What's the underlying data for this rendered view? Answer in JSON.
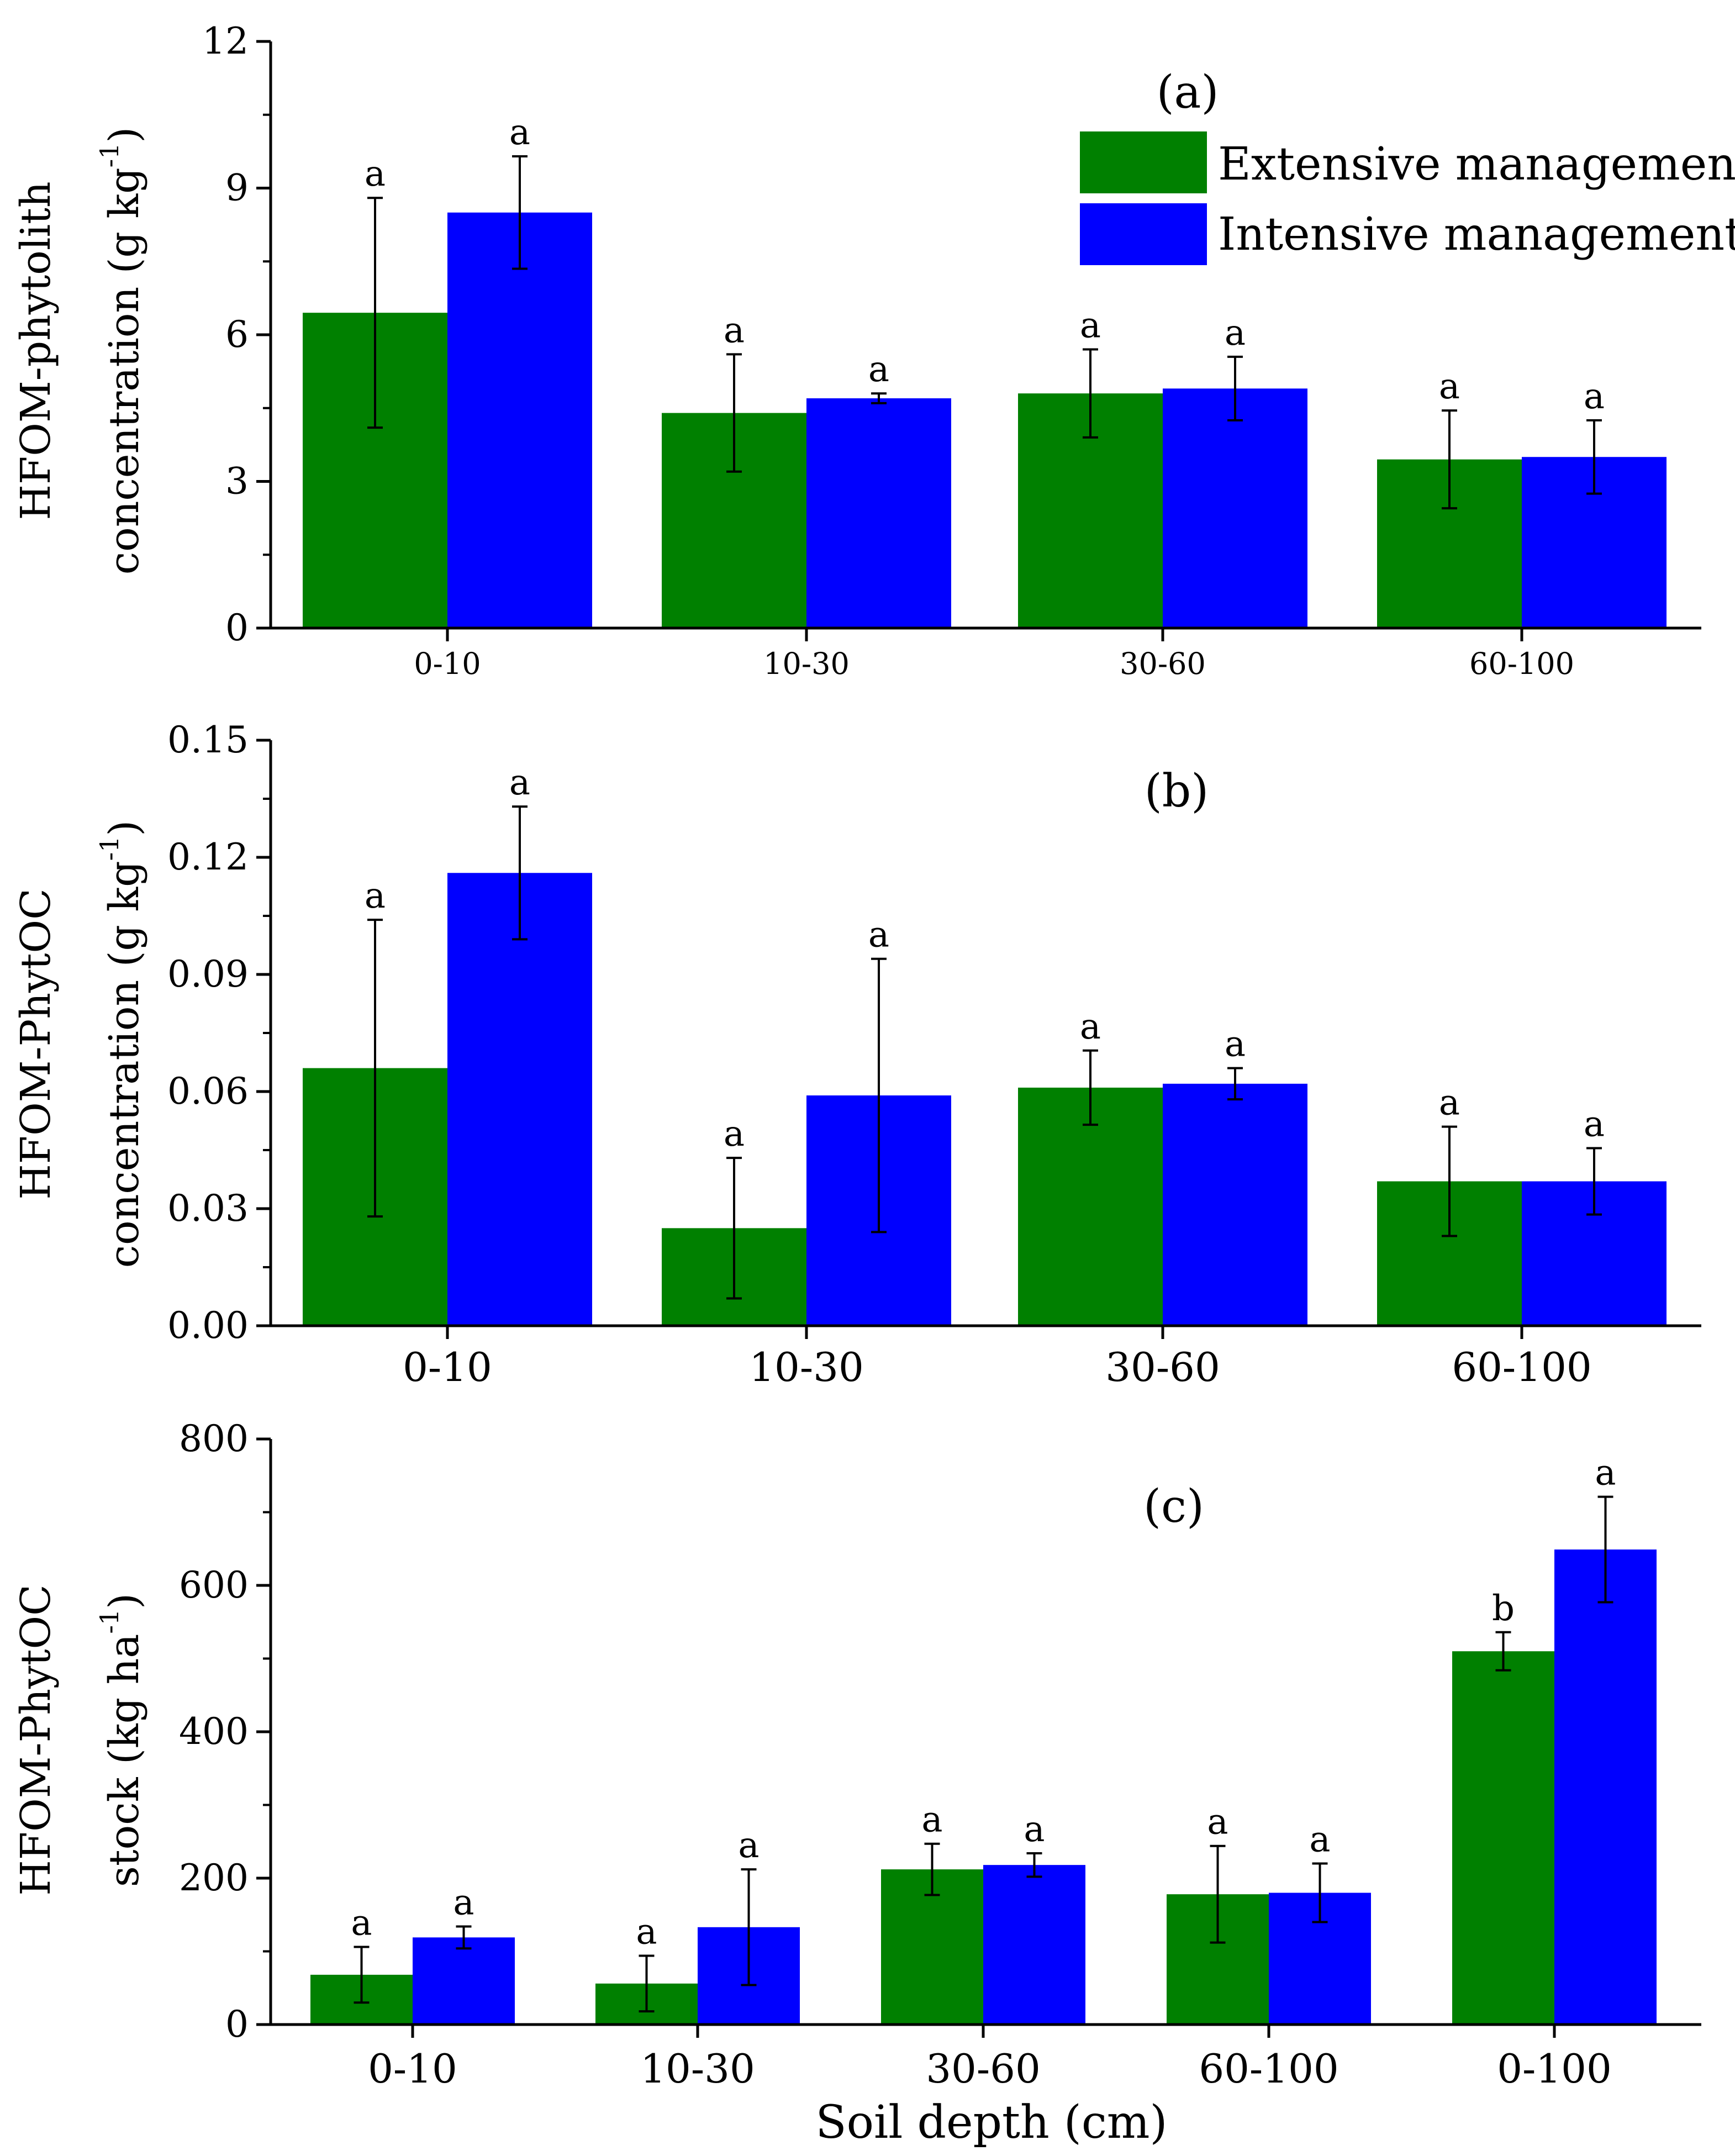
{
  "legend": {
    "extensive_label": "Extensive management",
    "intensive_label": "Intensive management",
    "extensive_color": "#008000",
    "intensive_color": "#0000ff"
  },
  "chart_data": [
    {
      "type": "bar",
      "panel_label": "(a)",
      "ylabel_line1": "HFOM-phytolith",
      "ylabel_line2_pre": "concentration (g kg",
      "ylabel_sup": "-1",
      "ylabel_line2_post": ")",
      "categories": [
        "0-10",
        "10-30",
        "30-60",
        "60-100"
      ],
      "ylim": [
        0,
        12
      ],
      "yticks": [
        "0",
        "3",
        "6",
        "9",
        "12"
      ],
      "ytick_values": [
        0,
        3,
        6,
        9,
        12
      ],
      "series": [
        {
          "name": "Extensive management",
          "values": [
            6.45,
            4.4,
            4.8,
            3.45
          ],
          "errors": [
            2.35,
            1.2,
            0.9,
            1.0
          ],
          "sig": [
            "a",
            "a",
            "a",
            "a"
          ]
        },
        {
          "name": "Intensive management",
          "values": [
            8.5,
            4.7,
            4.9,
            3.5
          ],
          "errors": [
            1.15,
            0.1,
            0.65,
            0.75
          ],
          "sig": [
            "a",
            "a",
            "a",
            "a"
          ]
        }
      ]
    },
    {
      "type": "bar",
      "panel_label": "(b)",
      "ylabel_line1": "HFOM-PhytOC",
      "ylabel_line2_pre": "concentration (g kg",
      "ylabel_sup": "-1",
      "ylabel_line2_post": ")",
      "categories": [
        "0-10",
        "10-30",
        "30-60",
        "60-100"
      ],
      "ylim": [
        0,
        0.15
      ],
      "yticks": [
        "0.00",
        "0.03",
        "0.06",
        "0.09",
        "0.12",
        "0.15"
      ],
      "ytick_values": [
        0,
        0.03,
        0.06,
        0.09,
        0.12,
        0.15
      ],
      "series": [
        {
          "name": "Extensive management",
          "values": [
            0.066,
            0.025,
            0.061,
            0.037
          ],
          "errors": [
            0.038,
            0.018,
            0.0095,
            0.014
          ],
          "sig": [
            "a",
            "a",
            "a",
            "a"
          ]
        },
        {
          "name": "Intensive management",
          "values": [
            0.116,
            0.059,
            0.062,
            0.037
          ],
          "errors": [
            0.017,
            0.035,
            0.004,
            0.0085
          ],
          "sig": [
            "a",
            "a",
            "a",
            "a"
          ]
        }
      ]
    },
    {
      "type": "bar",
      "panel_label": "(c)",
      "ylabel_line1": "HFOM-PhytOC",
      "ylabel_line2_pre": "stock (kg ha",
      "ylabel_sup": "-1",
      "ylabel_line2_post": ")",
      "xlabel": "Soil depth (cm)",
      "categories": [
        "0-10",
        "10-30",
        "30-60",
        "60-100",
        "0-100"
      ],
      "ylim": [
        0,
        800
      ],
      "yticks": [
        "0",
        "200",
        "400",
        "600",
        "800"
      ],
      "ytick_values": [
        0,
        200,
        400,
        600,
        800
      ],
      "series": [
        {
          "name": "Extensive management",
          "values": [
            68,
            56,
            212,
            178,
            510
          ],
          "errors": [
            38,
            38,
            35,
            66,
            26
          ],
          "sig": [
            "a",
            "a",
            "a",
            "a",
            "b"
          ]
        },
        {
          "name": "Intensive management",
          "values": [
            119,
            133,
            218,
            180,
            649
          ],
          "errors": [
            15,
            79,
            16,
            40,
            72
          ],
          "sig": [
            "a",
            "a",
            "a",
            "a",
            "a"
          ]
        }
      ]
    }
  ]
}
